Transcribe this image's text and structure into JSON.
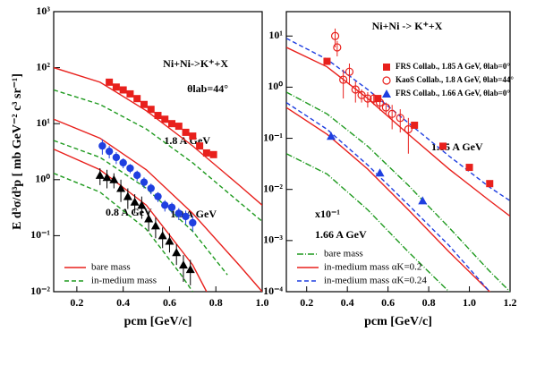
{
  "chart_data": [
    {
      "type": "line",
      "log_y": true,
      "legend": "lower left",
      "x_label": "pcm  [GeV/c]",
      "y_label": "E d³σ/d³p  [ mb GeV⁻² c³ sr⁻¹]",
      "annotations": [
        "Ni+Ni->K⁺+X",
        "θlab=44°",
        "1.8 A GeV",
        "1.0 A GeV",
        "0.8 A GeV"
      ],
      "xlim": [
        0.1,
        1.0
      ],
      "xticks": [
        0.2,
        0.4,
        0.6,
        0.8,
        {
          "value": 1.0,
          "label": "1.0"
        }
      ],
      "ylim": [
        0.01,
        1000
      ],
      "yticks": [
        {
          "value": 0.01,
          "label": "10⁻²"
        },
        {
          "value": 0.1,
          "label": "10⁻¹"
        },
        {
          "value": 1,
          "label": "10⁰"
        },
        {
          "value": 10,
          "label": "10¹"
        },
        {
          "value": 100,
          "label": "10²"
        },
        {
          "value": 1000,
          "label": "10³"
        }
      ],
      "series": [
        {
          "name": "bare mass",
          "color": "#e8201c",
          "line": "solid",
          "x": [
            0.1,
            0.3,
            0.5,
            0.7,
            0.9,
            1.0
          ],
          "values": [
            100,
            55,
            17,
            4,
            0.8,
            0.35
          ]
        },
        {
          "name": "in-medium mass",
          "color": "#1f9a1f",
          "line": "dashed",
          "x": [
            0.1,
            0.3,
            0.5,
            0.7,
            0.9,
            1.0
          ],
          "values": [
            40,
            22,
            8,
            2,
            0.4,
            0.18
          ]
        },
        {
          "color": "#e8201c",
          "line": "solid",
          "x": [
            0.1,
            0.3,
            0.5,
            0.7,
            0.9,
            1.0
          ],
          "values": [
            12,
            5.5,
            1.5,
            0.25,
            0.03,
            0.01
          ]
        },
        {
          "color": "#1f9a1f",
          "line": "dashed",
          "x": [
            0.1,
            0.3,
            0.5,
            0.7,
            0.85
          ],
          "values": [
            5,
            2.5,
            0.7,
            0.12,
            0.02
          ]
        },
        {
          "color": "#e8201c",
          "line": "solid",
          "x": [
            0.1,
            0.3,
            0.5,
            0.7,
            0.76
          ],
          "values": [
            3.5,
            1.5,
            0.35,
            0.03,
            0.01
          ]
        },
        {
          "color": "#1f9a1f",
          "line": "dashed",
          "x": [
            0.1,
            0.3,
            0.5,
            0.65,
            0.7
          ],
          "values": [
            1.3,
            0.6,
            0.13,
            0.02,
            0.01
          ]
        },
        {
          "color": "#e8201c",
          "marker": "square",
          "x": [
            0.34,
            0.37,
            0.4,
            0.43,
            0.46,
            0.49,
            0.52,
            0.55,
            0.58,
            0.61,
            0.64,
            0.67,
            0.7,
            0.73,
            0.76,
            0.79
          ],
          "values": [
            55,
            45,
            40,
            34,
            28,
            22,
            18,
            14,
            12,
            10,
            9,
            7,
            6,
            4,
            3,
            2.8
          ]
        },
        {
          "color": "#1f3fe0",
          "marker": "circle",
          "x": [
            0.31,
            0.34,
            0.37,
            0.4,
            0.43,
            0.46,
            0.49,
            0.52,
            0.55,
            0.58,
            0.61,
            0.64,
            0.67,
            0.7
          ],
          "values": [
            4,
            3.2,
            2.5,
            2.0,
            1.6,
            1.2,
            0.9,
            0.7,
            0.5,
            0.35,
            0.32,
            0.25,
            0.22,
            0.17
          ],
          "errors": [
            1.2,
            0.8,
            0.6,
            0.4,
            0.3,
            0.25,
            0.2,
            0.15,
            0.1,
            0.08,
            0.07,
            0.06,
            0.06,
            0.05
          ]
        },
        {
          "color": "#000000",
          "marker": "triangle",
          "x": [
            0.3,
            0.33,
            0.36,
            0.39,
            0.42,
            0.45,
            0.48,
            0.51,
            0.54,
            0.57,
            0.6,
            0.63,
            0.66,
            0.69
          ],
          "values": [
            1.2,
            1.1,
            1.0,
            0.7,
            0.5,
            0.4,
            0.35,
            0.2,
            0.15,
            0.1,
            0.08,
            0.05,
            0.03,
            0.025
          ],
          "errors": [
            0.4,
            0.4,
            0.3,
            0.3,
            0.2,
            0.15,
            0.15,
            0.08,
            0.06,
            0.04,
            0.03,
            0.02,
            0.015,
            0.012
          ]
        }
      ]
    },
    {
      "type": "line",
      "log_y": true,
      "legend": "upper right",
      "x_label": "pcm  [GeV/c]",
      "annotations": [
        "Ni+Ni -> K⁺+X",
        "1.85 A GeV",
        "x10⁻¹",
        "1.66 A GeV"
      ],
      "xlim": [
        0.1,
        1.2
      ],
      "xticks": [
        0.2,
        0.4,
        0.6,
        0.8,
        {
          "value": 1.0,
          "label": "1.0"
        },
        1.2
      ],
      "ylim": [
        0.0001,
        30
      ],
      "yticks": [
        {
          "value": 0.0001,
          "label": "10⁻⁴"
        },
        {
          "value": 0.001,
          "label": "10⁻³"
        },
        {
          "value": 0.01,
          "label": "10⁻²"
        },
        {
          "value": 0.1,
          "label": "10⁻¹"
        },
        {
          "value": 1,
          "label": "10⁰"
        },
        {
          "value": 10,
          "label": "10¹"
        }
      ],
      "series": [
        {
          "name": "bare mass",
          "color": "#1f9a1f",
          "line": "dashdot",
          "x": [
            0.1,
            0.3,
            0.5,
            0.7,
            0.9,
            1.1,
            1.2
          ],
          "values": [
            0.8,
            0.3,
            0.07,
            0.012,
            0.0018,
            0.00025,
            0.0001
          ]
        },
        {
          "name": "in-medium mass αK=0.2",
          "color": "#e8201c",
          "line": "solid",
          "x": [
            0.1,
            0.3,
            0.5,
            0.7,
            0.9,
            1.1,
            1.2
          ],
          "values": [
            6,
            2.5,
            0.6,
            0.12,
            0.025,
            0.006,
            0.003
          ]
        },
        {
          "name": "in-medium mass αK=0.24",
          "color": "#1f3fe0",
          "line": "dashed",
          "x": [
            0.1,
            0.3,
            0.5,
            0.7,
            0.9,
            1.1,
            1.2
          ],
          "values": [
            9,
            3.5,
            0.9,
            0.2,
            0.045,
            0.011,
            0.006
          ]
        },
        {
          "color": "#1f9a1f",
          "line": "dashdot",
          "x": [
            0.1,
            0.3,
            0.5,
            0.7,
            0.9
          ],
          "values": [
            0.05,
            0.02,
            0.004,
            0.0006,
            0.0001
          ]
        },
        {
          "color": "#e8201c",
          "line": "solid",
          "x": [
            0.1,
            0.3,
            0.5,
            0.7,
            0.9,
            1.1,
            1.2
          ],
          "values": [
            0.4,
            0.12,
            0.025,
            0.004,
            0.0006,
            0.0001,
            4e-05
          ]
        },
        {
          "color": "#1f3fe0",
          "line": "dashed",
          "x": [
            0.1,
            0.3,
            0.5,
            0.7,
            0.9,
            1.1
          ],
          "values": [
            0.5,
            0.15,
            0.03,
            0.005,
            0.0008,
            0.0001
          ]
        },
        {
          "name": "FRS Collab., 1.85 A GeV, θlab=0°",
          "color": "#e8201c",
          "marker": "square",
          "x": [
            0.3,
            0.55,
            0.73,
            0.87,
            1.0,
            1.1
          ],
          "values": [
            3.2,
            0.6,
            0.18,
            0.07,
            0.027,
            0.013
          ]
        },
        {
          "name": "KaoS Collab., 1.8 A GeV, θlab=44°",
          "color": "#e8201c",
          "marker": "open-circle",
          "x": [
            0.34,
            0.35,
            0.38,
            0.41,
            0.44,
            0.47,
            0.5,
            0.53,
            0.56,
            0.59,
            0.62,
            0.66,
            0.7
          ],
          "values": [
            10,
            6,
            1.4,
            2.0,
            0.9,
            0.7,
            0.6,
            0.6,
            0.5,
            0.4,
            0.3,
            0.25,
            0.15
          ],
          "errors": [
            4,
            2,
            0.8,
            0.9,
            0.4,
            0.2,
            0.2,
            0.15,
            0.15,
            0.1,
            0.15,
            0.12,
            0.1
          ]
        },
        {
          "name": "FRS Collab., 1.66 A GeV, θlab=0°",
          "color": "#1f3fe0",
          "marker": "triangle",
          "x": [
            0.32,
            0.56,
            0.77
          ],
          "values": [
            0.11,
            0.021,
            0.006
          ]
        }
      ]
    }
  ]
}
